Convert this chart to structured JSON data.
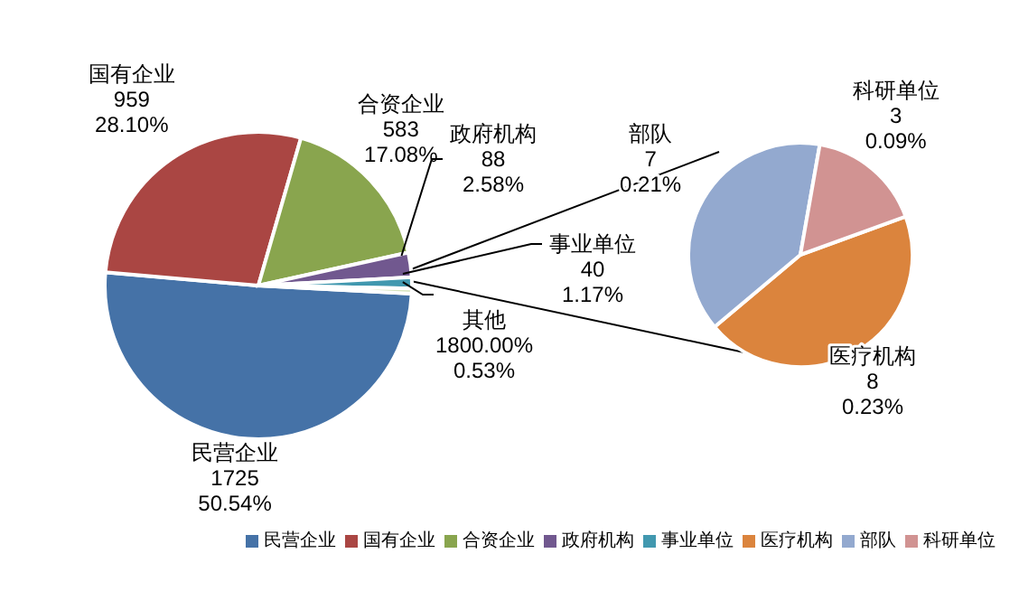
{
  "chart_data": [
    {
      "type": "pie",
      "categories": [
        "民营企业",
        "国有企业",
        "合资企业",
        "政府机构",
        "事业单位",
        "其他"
      ],
      "values": [
        1725,
        959,
        583,
        88,
        40,
        18
      ],
      "colors": [
        "#4572a7",
        "#aa4643",
        "#89a54e",
        "#71588f",
        "#4198af",
        "#d7e4bd"
      ],
      "value_labels": [
        "1725\n50.54%",
        "959\n28.10%",
        "583\n17.08%",
        "88\n2.58%",
        "40\n1.17%",
        "1800.00%\n0.53%"
      ],
      "legend": "bottom"
    },
    {
      "type": "pie",
      "categories": [
        "医疗机构",
        "部队",
        "科研单位"
      ],
      "values": [
        8,
        7,
        3
      ],
      "colors": [
        "#db843d",
        "#93a9cf",
        "#d19392"
      ],
      "value_labels": [
        "8\n0.23%",
        "7\n0.21%",
        "3\n0.09%"
      ],
      "legend": "bottom"
    }
  ]
}
